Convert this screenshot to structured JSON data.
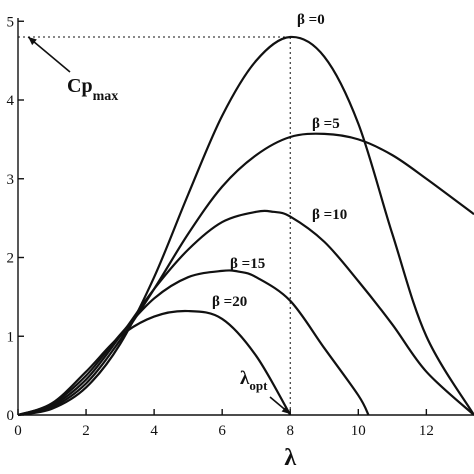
{
  "chart_data": {
    "type": "line",
    "xlabel": "λ",
    "ylabel": "",
    "xlim": [
      0,
      13.4
    ],
    "ylim": [
      0,
      4.9
    ],
    "xticks": [
      0,
      2,
      4,
      6,
      8,
      10,
      12
    ],
    "yticks": [
      0,
      1,
      2,
      3,
      4,
      5
    ],
    "grid": false,
    "series": [
      {
        "name": "β =0",
        "x": [
          0,
          1,
          2,
          3,
          4,
          5,
          6,
          7,
          8,
          9,
          10,
          11,
          12,
          13.4
        ],
        "y": [
          0,
          0.08,
          0.35,
          0.9,
          1.75,
          2.8,
          3.8,
          4.5,
          4.8,
          4.55,
          3.7,
          2.3,
          1.0,
          0
        ]
      },
      {
        "name": "β =5",
        "x": [
          0,
          1,
          2,
          3,
          4,
          5,
          6,
          7,
          8,
          9,
          10,
          11,
          12,
          13.4
        ],
        "y": [
          0,
          0.1,
          0.4,
          0.95,
          1.6,
          2.3,
          2.9,
          3.3,
          3.53,
          3.57,
          3.5,
          3.3,
          3.0,
          2.55
        ]
      },
      {
        "name": "β =10",
        "x": [
          0,
          1,
          2,
          3,
          4,
          5,
          6,
          7,
          7.5,
          8,
          9,
          10,
          11,
          12,
          13.4
        ],
        "y": [
          0,
          0.12,
          0.45,
          1.0,
          1.6,
          2.1,
          2.45,
          2.58,
          2.58,
          2.52,
          2.2,
          1.7,
          1.15,
          0.55,
          0
        ]
      },
      {
        "name": "β =15",
        "x": [
          0,
          1,
          2,
          3,
          4,
          5,
          6,
          6.5,
          7,
          8,
          9,
          10,
          10.3
        ],
        "y": [
          0,
          0.14,
          0.5,
          1.02,
          1.48,
          1.75,
          1.83,
          1.82,
          1.75,
          1.45,
          0.85,
          0.25,
          0
        ]
      },
      {
        "name": "β =20",
        "x": [
          0,
          1,
          2,
          3,
          4,
          5,
          6,
          7,
          8
        ],
        "y": [
          0,
          0.15,
          0.55,
          1.0,
          1.25,
          1.32,
          1.22,
          0.75,
          0
        ]
      }
    ],
    "annotations": [
      {
        "text_main": "Cp",
        "text_sub": "max",
        "points_to": [
          0.3,
          4.8
        ]
      },
      {
        "text_main": "λ",
        "text_sub": "opt",
        "points_to": [
          8,
          0
        ]
      }
    ],
    "max_marker": {
      "x": 8,
      "y": 4.8
    }
  }
}
